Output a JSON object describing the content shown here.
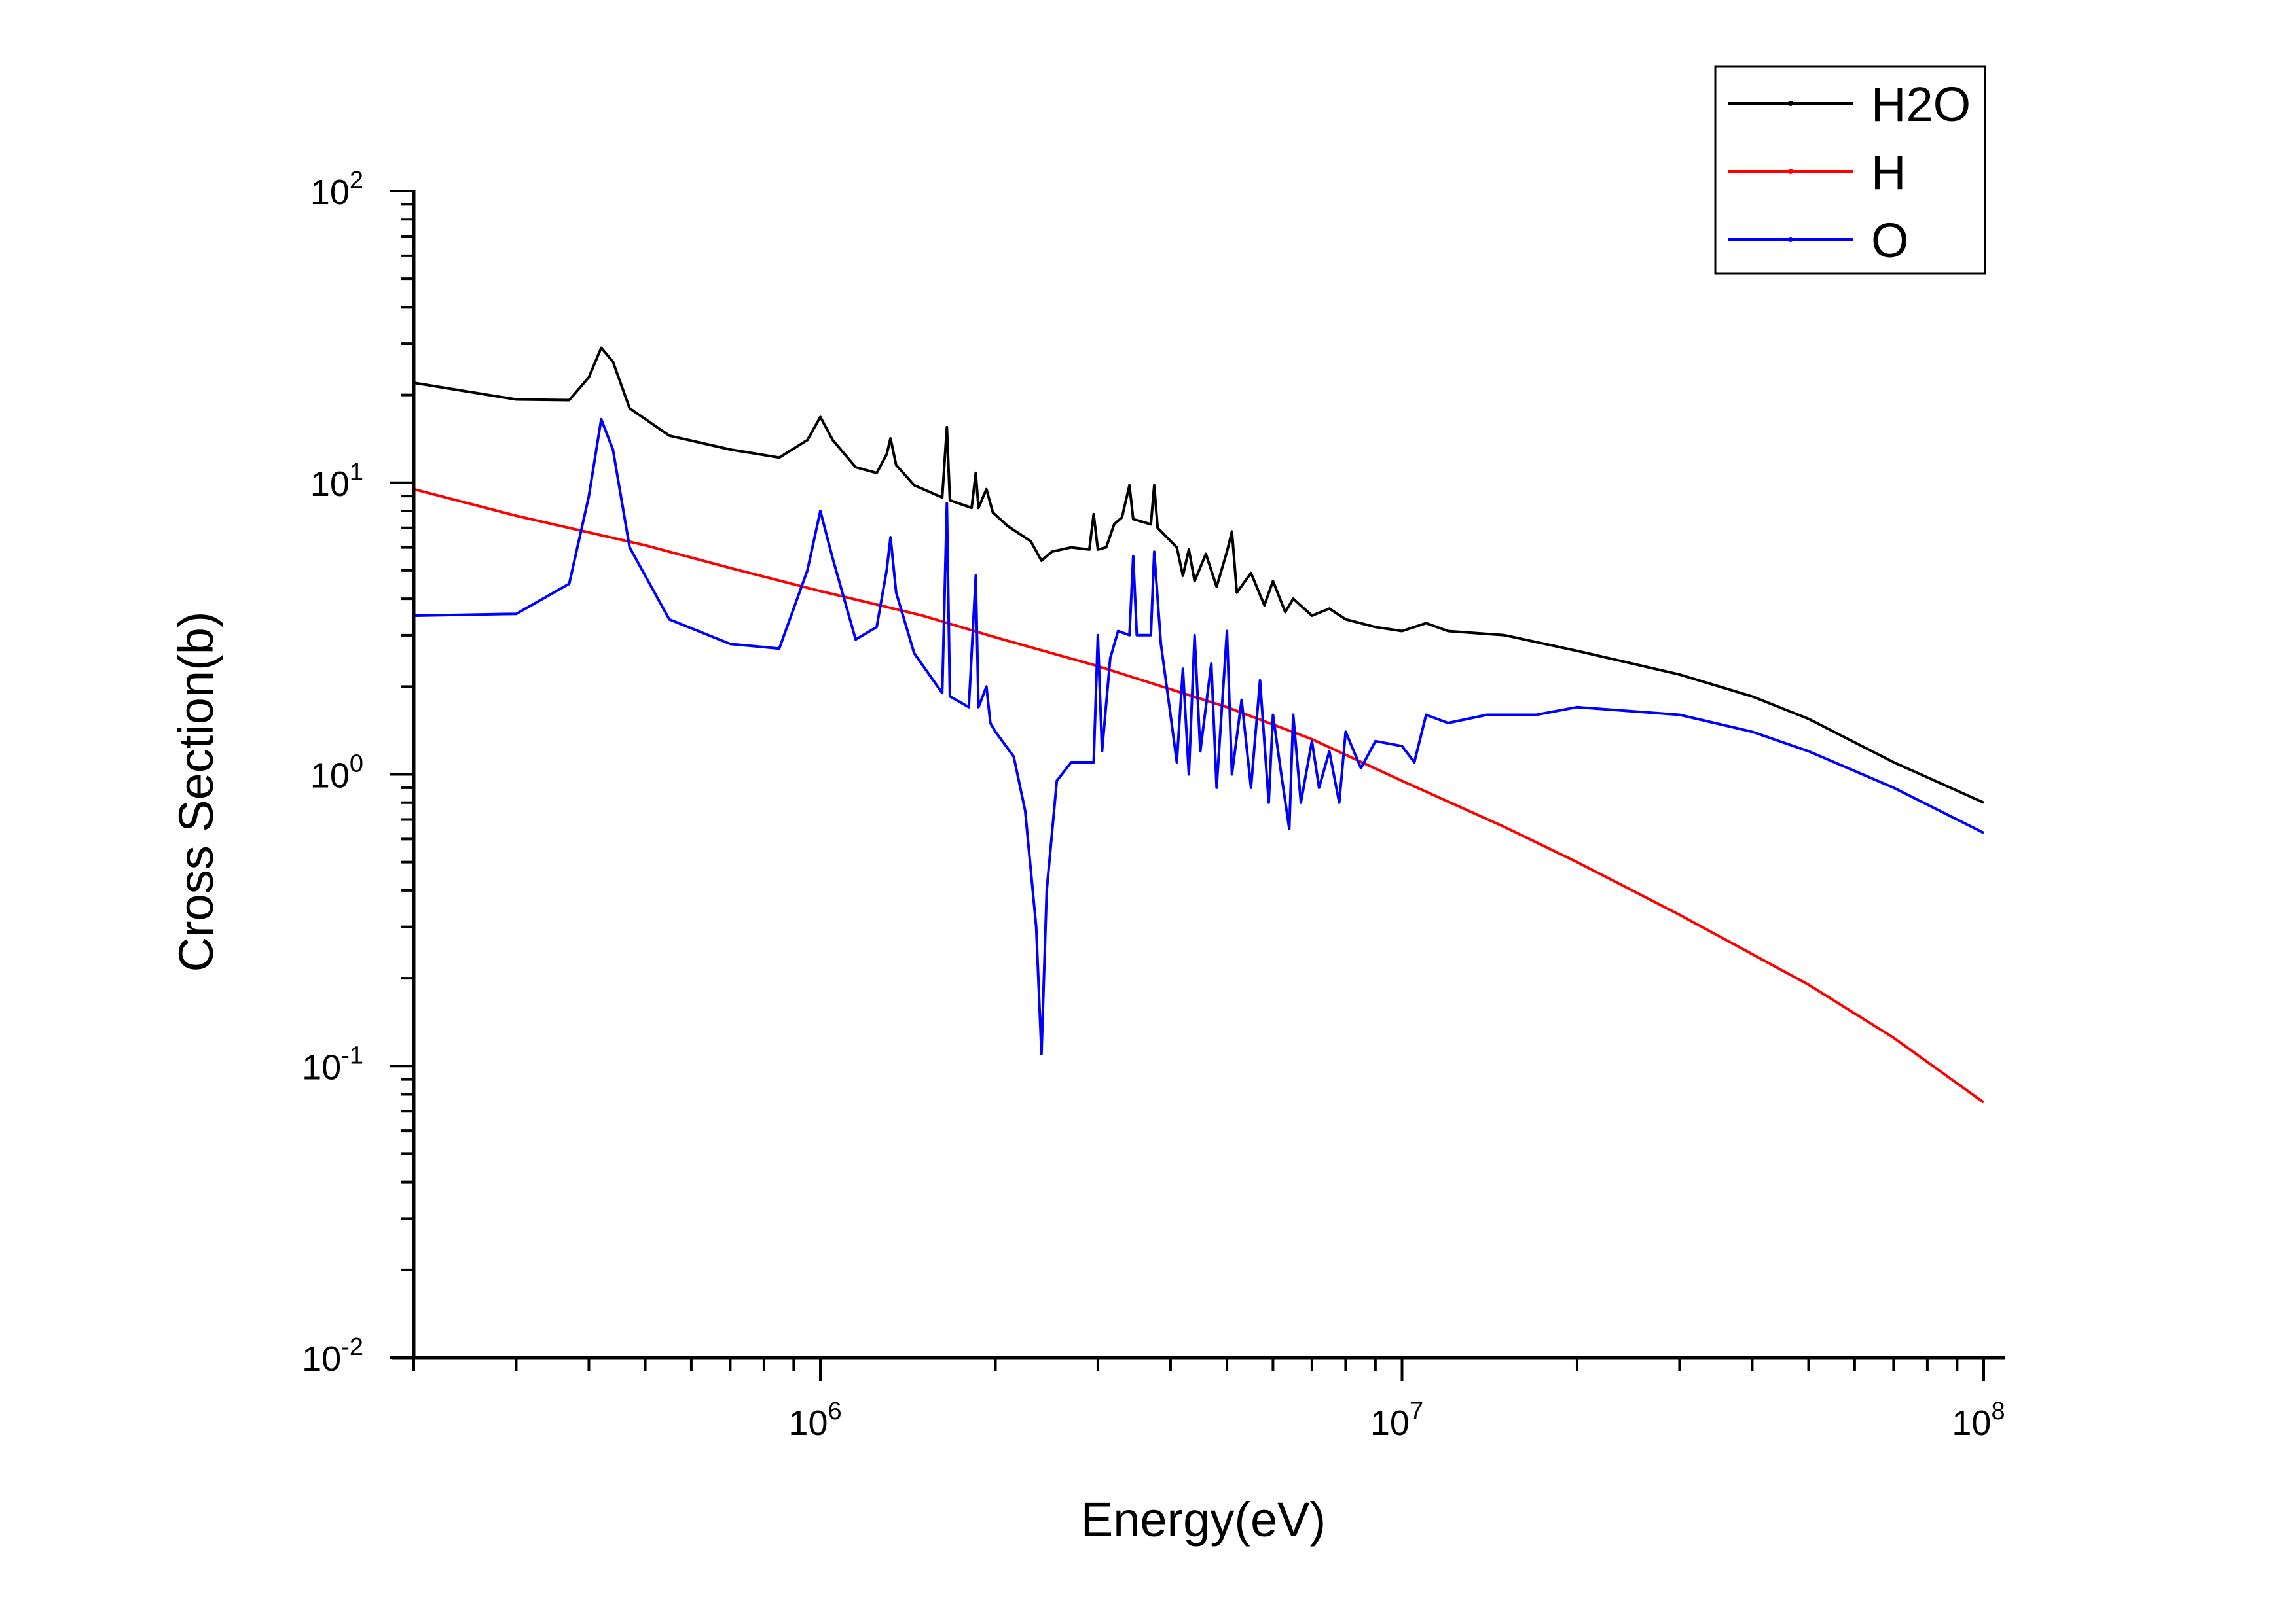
{
  "chart_data": {
    "type": "line",
    "xlabel": "Energy(eV)",
    "ylabel": "Cross Section(b)",
    "x_scale": "log",
    "y_scale": "log",
    "xlim": [
      200000,
      100000000
    ],
    "ylim": [
      0.01,
      100
    ],
    "x_ticks": [
      {
        "base": "10",
        "exp": "6",
        "value": 1000000
      },
      {
        "base": "10",
        "exp": "7",
        "value": 10000000
      },
      {
        "base": "10",
        "exp": "8",
        "value": 100000000
      }
    ],
    "y_ticks": [
      {
        "base": "10",
        "exp": "-2",
        "value": 0.01
      },
      {
        "base": "10",
        "exp": "-1",
        "value": 0.1
      },
      {
        "base": "10",
        "exp": "0",
        "value": 1
      },
      {
        "base": "10",
        "exp": "1",
        "value": 10
      },
      {
        "base": "10",
        "exp": "2",
        "value": 100
      }
    ],
    "grid": false,
    "legend_position": "top-right",
    "series": [
      {
        "name": "H2O",
        "color": "#000000",
        "points": [
          [
            200000,
            22.0
          ],
          [
            300000,
            19.3
          ],
          [
            370000,
            19.2
          ],
          [
            400000,
            23.0
          ],
          [
            420000,
            29.0
          ],
          [
            440000,
            26.0
          ],
          [
            470000,
            18.0
          ],
          [
            550000,
            14.5
          ],
          [
            700000,
            13.0
          ],
          [
            850000,
            12.2
          ],
          [
            950000,
            14.0
          ],
          [
            1000000,
            16.8
          ],
          [
            1050000,
            14.0
          ],
          [
            1150000,
            11.3
          ],
          [
            1250000,
            10.8
          ],
          [
            1300000,
            12.5
          ],
          [
            1320000,
            14.2
          ],
          [
            1350000,
            11.5
          ],
          [
            1450000,
            9.8
          ],
          [
            1620000,
            8.9
          ],
          [
            1650000,
            15.5
          ],
          [
            1670000,
            8.7
          ],
          [
            1820000,
            8.2
          ],
          [
            1850000,
            10.8
          ],
          [
            1870000,
            8.2
          ],
          [
            1930000,
            9.5
          ],
          [
            1980000,
            7.9
          ],
          [
            2100000,
            7.1
          ],
          [
            2300000,
            6.3
          ],
          [
            2400000,
            5.4
          ],
          [
            2500000,
            5.8
          ],
          [
            2700000,
            6.0
          ],
          [
            2900000,
            5.9
          ],
          [
            2950000,
            7.8
          ],
          [
            3000000,
            5.9
          ],
          [
            3100000,
            6.0
          ],
          [
            3200000,
            7.2
          ],
          [
            3300000,
            7.6
          ],
          [
            3400000,
            9.8
          ],
          [
            3450000,
            7.5
          ],
          [
            3700000,
            7.2
          ],
          [
            3750000,
            9.8
          ],
          [
            3800000,
            7.0
          ],
          [
            4100000,
            6.0
          ],
          [
            4200000,
            4.8
          ],
          [
            4300000,
            5.9
          ],
          [
            4400000,
            4.6
          ],
          [
            4600000,
            5.7
          ],
          [
            4800000,
            4.4
          ],
          [
            5000000,
            5.8
          ],
          [
            5100000,
            6.8
          ],
          [
            5200000,
            4.2
          ],
          [
            5500000,
            4.9
          ],
          [
            5800000,
            3.8
          ],
          [
            6000000,
            4.6
          ],
          [
            6300000,
            3.6
          ],
          [
            6500000,
            4.0
          ],
          [
            7000000,
            3.5
          ],
          [
            7500000,
            3.7
          ],
          [
            8000000,
            3.4
          ],
          [
            9000000,
            3.2
          ],
          [
            10000000,
            3.1
          ],
          [
            11000000,
            3.3
          ],
          [
            12000000,
            3.1
          ],
          [
            15000000,
            3.0
          ],
          [
            20000000,
            2.65
          ],
          [
            30000000,
            2.2
          ],
          [
            40000000,
            1.85
          ],
          [
            50000000,
            1.55
          ],
          [
            70000000,
            1.1
          ],
          [
            100000000,
            0.8
          ]
        ]
      },
      {
        "name": "H",
        "color": "#ff0000",
        "points": [
          [
            200000,
            9.5
          ],
          [
            300000,
            7.7
          ],
          [
            500000,
            6.1
          ],
          [
            700000,
            5.1
          ],
          [
            1000000,
            4.25
          ],
          [
            1500000,
            3.5
          ],
          [
            2000000,
            2.95
          ],
          [
            3000000,
            2.35
          ],
          [
            5000000,
            1.7
          ],
          [
            7000000,
            1.32
          ],
          [
            10000000,
            0.95
          ],
          [
            15000000,
            0.66
          ],
          [
            20000000,
            0.5
          ],
          [
            30000000,
            0.33
          ],
          [
            50000000,
            0.19
          ],
          [
            70000000,
            0.125
          ],
          [
            100000000,
            0.075
          ]
        ]
      },
      {
        "name": "O",
        "color": "#0000ff",
        "points": [
          [
            200000,
            3.5
          ],
          [
            300000,
            3.55
          ],
          [
            370000,
            4.5
          ],
          [
            400000,
            9.0
          ],
          [
            420000,
            16.5
          ],
          [
            440000,
            13.0
          ],
          [
            470000,
            6.0
          ],
          [
            550000,
            3.4
          ],
          [
            700000,
            2.8
          ],
          [
            850000,
            2.7
          ],
          [
            950000,
            5.0
          ],
          [
            1000000,
            8.0
          ],
          [
            1050000,
            5.5
          ],
          [
            1150000,
            2.9
          ],
          [
            1250000,
            3.2
          ],
          [
            1300000,
            5.0
          ],
          [
            1320000,
            6.5
          ],
          [
            1350000,
            4.2
          ],
          [
            1450000,
            2.6
          ],
          [
            1620000,
            1.9
          ],
          [
            1650000,
            8.5
          ],
          [
            1670000,
            1.85
          ],
          [
            1800000,
            1.7
          ],
          [
            1850000,
            4.8
          ],
          [
            1870000,
            1.7
          ],
          [
            1930000,
            2.0
          ],
          [
            1960000,
            1.5
          ],
          [
            2000000,
            1.4
          ],
          [
            2150000,
            1.15
          ],
          [
            2250000,
            0.75
          ],
          [
            2350000,
            0.3
          ],
          [
            2400000,
            0.11
          ],
          [
            2450000,
            0.4
          ],
          [
            2550000,
            0.95
          ],
          [
            2700000,
            1.1
          ],
          [
            2950000,
            1.1
          ],
          [
            3000000,
            3.0
          ],
          [
            3050000,
            1.2
          ],
          [
            3150000,
            2.5
          ],
          [
            3250000,
            3.1
          ],
          [
            3400000,
            3.0
          ],
          [
            3450000,
            5.6
          ],
          [
            3500000,
            3.0
          ],
          [
            3700000,
            3.0
          ],
          [
            3750000,
            5.8
          ],
          [
            3850000,
            2.8
          ],
          [
            4000000,
            1.6
          ],
          [
            4100000,
            1.1
          ],
          [
            4200000,
            2.3
          ],
          [
            4300000,
            1.0
          ],
          [
            4400000,
            3.0
          ],
          [
            4500000,
            1.2
          ],
          [
            4700000,
            2.4
          ],
          [
            4800000,
            0.9
          ],
          [
            5000000,
            3.1
          ],
          [
            5100000,
            1.0
          ],
          [
            5300000,
            1.8
          ],
          [
            5500000,
            0.9
          ],
          [
            5700000,
            2.1
          ],
          [
            5900000,
            0.8
          ],
          [
            6000000,
            1.6
          ],
          [
            6200000,
            1.0
          ],
          [
            6400000,
            0.65
          ],
          [
            6500000,
            1.6
          ],
          [
            6700000,
            0.8
          ],
          [
            7000000,
            1.3
          ],
          [
            7200000,
            0.9
          ],
          [
            7500000,
            1.2
          ],
          [
            7800000,
            0.8
          ],
          [
            8000000,
            1.4
          ],
          [
            8500000,
            1.05
          ],
          [
            9000000,
            1.3
          ],
          [
            10000000,
            1.25
          ],
          [
            10500000,
            1.1
          ],
          [
            11000000,
            1.6
          ],
          [
            12000000,
            1.5
          ],
          [
            14000000,
            1.6
          ],
          [
            17000000,
            1.6
          ],
          [
            20000000,
            1.7
          ],
          [
            30000000,
            1.6
          ],
          [
            40000000,
            1.4
          ],
          [
            50000000,
            1.2
          ],
          [
            70000000,
            0.9
          ],
          [
            100000000,
            0.63
          ]
        ]
      }
    ]
  }
}
